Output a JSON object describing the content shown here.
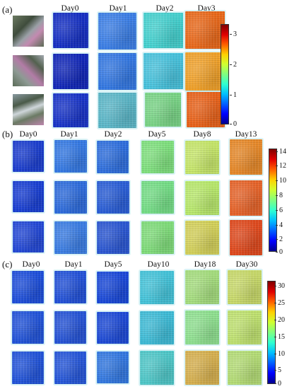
{
  "colorbar_gradient": [
    "#00008f",
    "#0000ff",
    "#0060ff",
    "#00c0ff",
    "#30ffd0",
    "#80ff80",
    "#d0ff30",
    "#ffd000",
    "#ff6000",
    "#e00000",
    "#800000"
  ],
  "panel_a": {
    "label": "(a)",
    "columns": [
      "Day0",
      "Day1",
      "Day2",
      "Day3"
    ],
    "colorbar_ticks": [
      "3",
      "2",
      "1",
      "0"
    ],
    "rows": [
      [
        "#1631c4",
        "#3c7fe6",
        "#45d1cf",
        "#e9691b"
      ],
      [
        "#1228b8",
        "#3478e2",
        "#48c2dc",
        "#f0a12a"
      ],
      [
        "#1935c8",
        "#5bb7c8",
        "#79d486",
        "#e8621a"
      ]
    ]
  },
  "panel_b": {
    "label": "(b)",
    "columns": [
      "Day0",
      "Day1",
      "Day2",
      "Day5",
      "Day8",
      "Day13"
    ],
    "colorbar_ticks": [
      "14",
      "12",
      "10",
      "8",
      "6",
      "4",
      "2",
      "0"
    ],
    "rows": [
      [
        "#1c3fcf",
        "#3579e3",
        "#2f6fdd",
        "#7fe07e",
        "#c6e66a",
        "#e6892a"
      ],
      [
        "#1a40d3",
        "#2e6cdc",
        "#2a5ed6",
        "#74dd86",
        "#b8e86c",
        "#e6642a"
      ],
      [
        "#2449d6",
        "#3b7de3",
        "#2b57d2",
        "#7fdc7a",
        "#d3d05a",
        "#df4a1e"
      ]
    ]
  },
  "panel_c": {
    "label": "(c)",
    "columns": [
      "Day0",
      "Day1",
      "Day5",
      "Day10",
      "Day18",
      "Day30"
    ],
    "colorbar_ticks": [
      "30",
      "25",
      "20",
      "15",
      "10",
      "5",
      "0"
    ],
    "rows": [
      [
        "#1e4fda",
        "#2352d8",
        "#1a49d8",
        "#44c3d9",
        "#a5dd7e",
        "#c8d96a"
      ],
      [
        "#2254d9",
        "#2654d6",
        "#1d4ad6",
        "#3ebbd6",
        "#8fe090",
        "#bfe170"
      ],
      [
        "#2254d9",
        "#2657d9",
        "#3378e0",
        "#4fc7c8",
        "#d6b04f",
        "#b4dc76"
      ]
    ]
  }
}
